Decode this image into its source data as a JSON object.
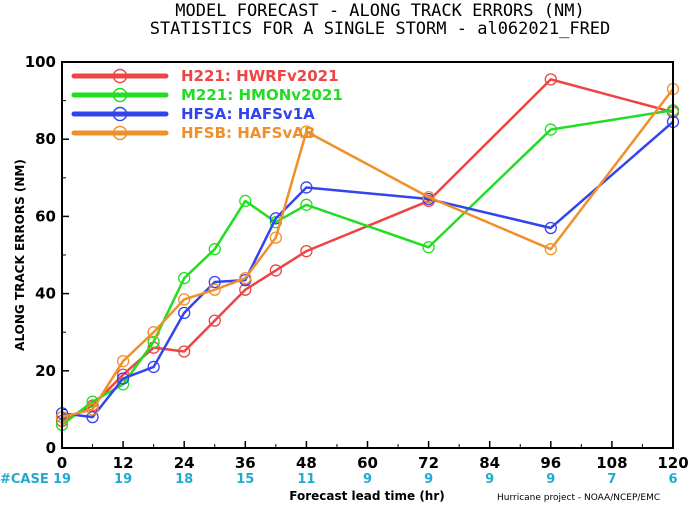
{
  "chart_data": {
    "type": "line",
    "title_line1": "MODEL FORECAST - ALONG TRACK ERRORS (NM)",
    "title_line2": "STATISTICS FOR A SINGLE STORM - al062021_FRED",
    "xlabel": "Forecast lead time (hr)",
    "ylabel": "ALONG TRACK ERRORS (NM)",
    "xlim": [
      0,
      120
    ],
    "ylim": [
      0,
      100
    ],
    "x_ticks": [
      0,
      12,
      24,
      36,
      48,
      60,
      72,
      84,
      96,
      108,
      120
    ],
    "y_ticks": [
      0,
      20,
      40,
      60,
      80,
      100
    ],
    "grid": false,
    "legend_placement": "top-left",
    "series": [
      {
        "name": "H221: HWRFv2021",
        "color": "#ee4444",
        "points": [
          [
            0,
            7
          ],
          [
            6,
            11
          ],
          [
            12,
            19
          ],
          [
            18,
            26
          ],
          [
            24,
            25
          ],
          [
            30,
            33
          ],
          [
            36,
            41
          ],
          [
            42,
            46
          ],
          [
            48,
            51
          ],
          [
            72,
            64
          ],
          [
            96,
            95.5
          ],
          [
            120,
            87
          ]
        ]
      },
      {
        "name": "M221: HMONv2021",
        "color": "#22dd22",
        "points": [
          [
            0,
            6
          ],
          [
            6,
            12
          ],
          [
            12,
            16.5
          ],
          [
            18,
            27.5
          ],
          [
            24,
            44
          ],
          [
            30,
            51.5
          ],
          [
            36,
            64
          ],
          [
            42,
            58.5
          ],
          [
            48,
            63
          ],
          [
            72,
            52
          ],
          [
            96,
            82.5
          ],
          [
            120,
            87.5
          ]
        ]
      },
      {
        "name": "HFSA: HAFSv1A",
        "color": "#3344ee",
        "points": [
          [
            0,
            9
          ],
          [
            6,
            8
          ],
          [
            12,
            18
          ],
          [
            18,
            21
          ],
          [
            24,
            35
          ],
          [
            30,
            43
          ],
          [
            36,
            43.5
          ],
          [
            42,
            59.5
          ],
          [
            48,
            67.5
          ],
          [
            72,
            64.5
          ],
          [
            96,
            57
          ],
          [
            120,
            84.5
          ]
        ]
      },
      {
        "name": "HFSB: HAFSvAB",
        "color": "#f0902a",
        "points": [
          [
            0,
            8
          ],
          [
            6,
            10
          ],
          [
            12,
            22.5
          ],
          [
            18,
            30
          ],
          [
            24,
            38.5
          ],
          [
            30,
            41
          ],
          [
            36,
            44
          ],
          [
            42,
            54.5
          ],
          [
            48,
            82
          ],
          [
            72,
            65
          ],
          [
            96,
            51.5
          ],
          [
            120,
            93
          ]
        ]
      }
    ],
    "cases": {
      "label": "#CASE",
      "color": "#22aacc",
      "counts": [
        {
          "x": 0,
          "n": "19"
        },
        {
          "x": 12,
          "n": "19"
        },
        {
          "x": 24,
          "n": "18"
        },
        {
          "x": 36,
          "n": "15"
        },
        {
          "x": 48,
          "n": "11"
        },
        {
          "x": 60,
          "n": "9"
        },
        {
          "x": 72,
          "n": "9"
        },
        {
          "x": 84,
          "n": "9"
        },
        {
          "x": 96,
          "n": "9"
        },
        {
          "x": 108,
          "n": "7"
        },
        {
          "x": 120,
          "n": "6"
        }
      ]
    },
    "credit": "Hurricane project - NOAA/NCEP/EMC"
  }
}
